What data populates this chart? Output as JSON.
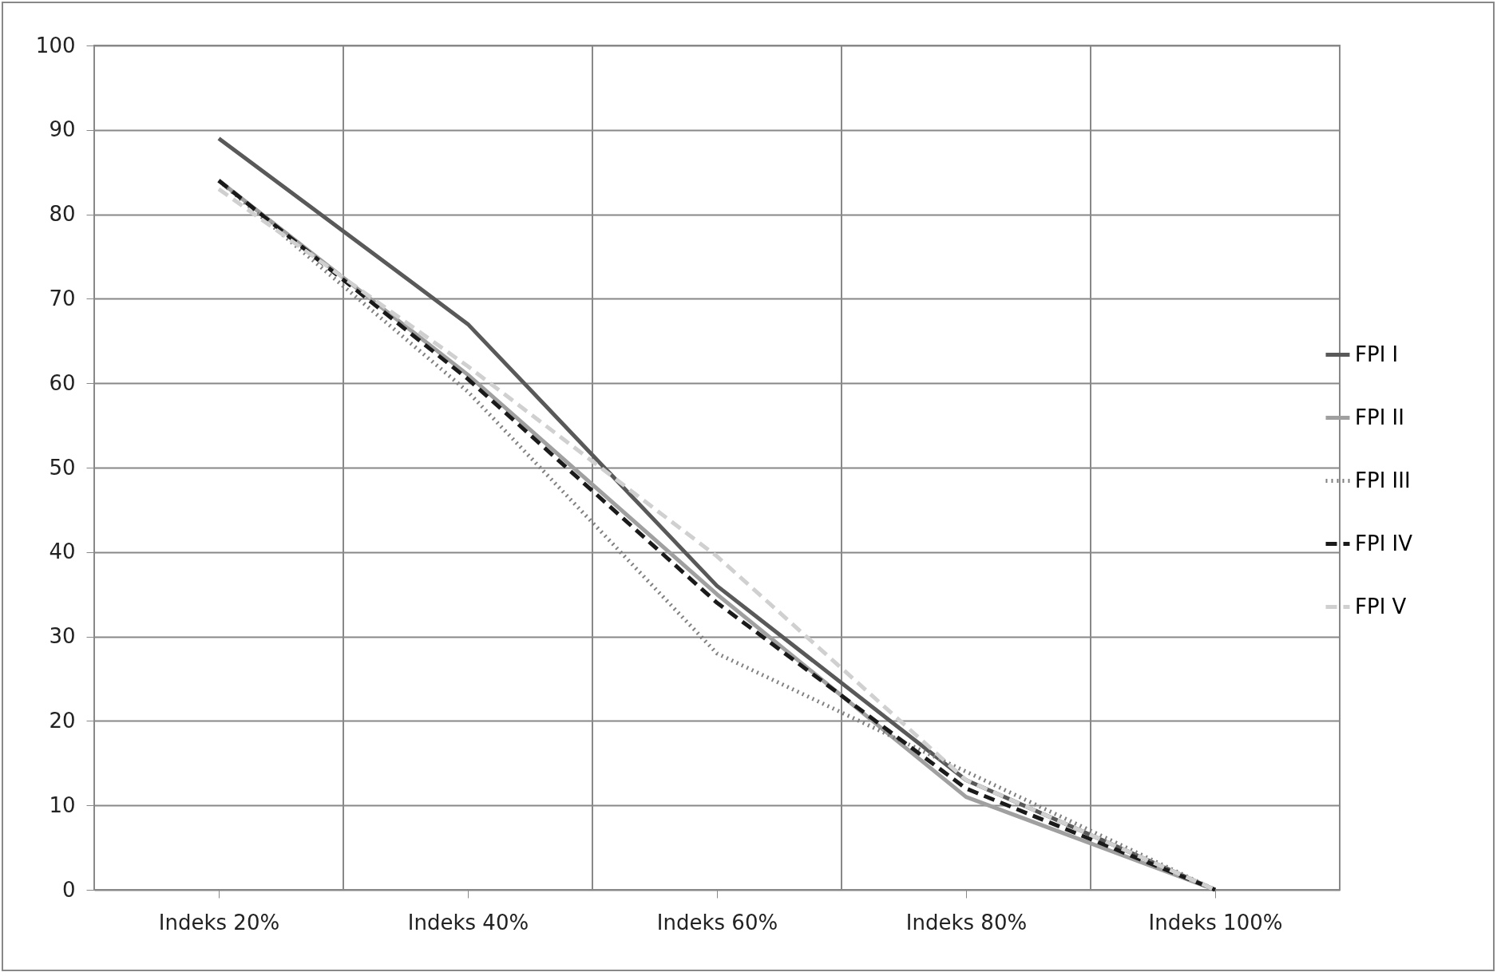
{
  "chart_data": {
    "type": "line",
    "categories": [
      "Indeks 20%",
      "Indeks 40%",
      "Indeks 60%",
      "Indeks 80%",
      "Indeks 100%"
    ],
    "ylim": [
      0,
      100
    ],
    "yticks": [
      0,
      10,
      20,
      30,
      40,
      50,
      60,
      70,
      80,
      90,
      100
    ],
    "grid": true,
    "legend": "right",
    "series": [
      {
        "name": "FPI I",
        "color": "#595959",
        "line_style": "solid",
        "values": [
          89,
          67,
          36,
          13,
          0
        ]
      },
      {
        "name": "FPI II",
        "color": "#a0a0a0",
        "line_style": "solid",
        "values": [
          84,
          61,
          35,
          11,
          0
        ]
      },
      {
        "name": "FPI III",
        "color": "#808080",
        "line_style": "dotted",
        "values": [
          84,
          59,
          28,
          14,
          0
        ]
      },
      {
        "name": "FPI IV",
        "color": "#1a1a1a",
        "line_style": "dashed",
        "values": [
          84,
          60.5,
          34,
          12,
          0
        ]
      },
      {
        "name": "FPI V",
        "color": "#d0d0d0",
        "line_style": "dashed",
        "values": [
          83,
          62,
          39.5,
          13,
          0
        ]
      }
    ]
  }
}
